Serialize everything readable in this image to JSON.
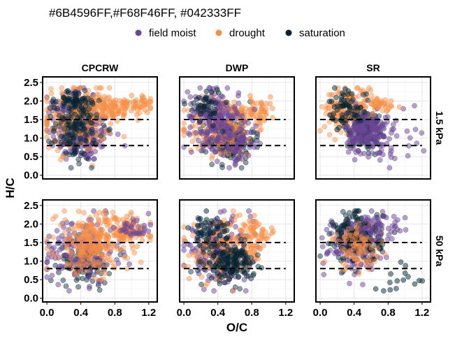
{
  "header": {
    "caption": "#6B4596FF,#F68F46FF, #042333FF"
  },
  "legend": {
    "items": [
      {
        "label": "field moist",
        "color": "#6B4596"
      },
      {
        "label": "drought",
        "color": "#F68F46"
      },
      {
        "label": "saturation",
        "color": "#042333"
      }
    ]
  },
  "chart_data": {
    "type": "scatter",
    "xlabel": "O/C",
    "ylabel": "H/C",
    "xlim": [
      -0.05,
      1.3
    ],
    "ylim": [
      -0.1,
      2.65
    ],
    "x_ticks": [
      0.0,
      0.4,
      0.8,
      1.2
    ],
    "x_tick_labels": [
      "0.0",
      "0.4",
      "0.8",
      "1.2"
    ],
    "y_ticks": [
      0.0,
      0.5,
      1.0,
      1.5,
      2.0,
      2.5
    ],
    "y_tick_labels": [
      "0.0",
      "0.5",
      "1.0",
      "1.5",
      "2.0",
      "2.5"
    ],
    "grid": true,
    "legend_position": "top",
    "columns": [
      "CPCRW",
      "DWP",
      "SR"
    ],
    "rows": [
      "1.5 kPa",
      "50 kPa"
    ],
    "reference_lines": [
      {
        "y": 1.5,
        "x_range": [
          0,
          1.2
        ],
        "style": "dashed"
      },
      {
        "y": 0.8,
        "x_range": [
          0,
          1.2
        ],
        "style": "dashed"
      }
    ],
    "series": [
      {
        "name": "field moist",
        "color": "#6B4596"
      },
      {
        "name": "drought",
        "color": "#F68F46"
      },
      {
        "name": "saturation",
        "color": "#042333"
      }
    ]
  }
}
